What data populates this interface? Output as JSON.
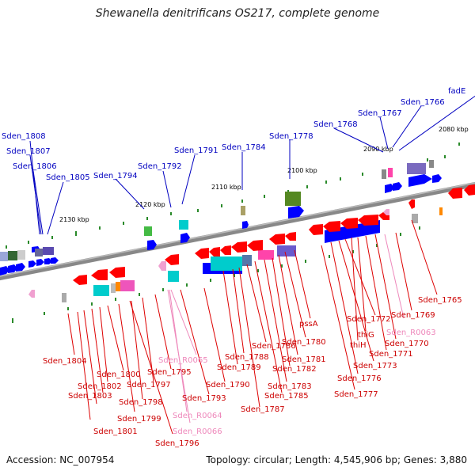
{
  "title": "Shewanella denitrificans OS217, complete genome",
  "accession": "Accession: NC_007954",
  "summary": "Topology: circular; Length: 4,545,906 bp; Genes: 3,880",
  "colors": {
    "forward_gene": "#0000ff",
    "reverse_gene": "#ff0000",
    "rna_gene": "#f0a0d0",
    "label_forward": "#0000c0",
    "label_reverse": "#cc0000",
    "label_rna": "#ee88bb",
    "backbone": "#888888",
    "tick": "#2a8a2a"
  },
  "ticks": [
    "2080 kbp",
    "2090 kbp",
    "2100 kbp",
    "2110 kbp",
    "2120 kbp",
    "2130 kbp"
  ],
  "forward_labels": [
    "Sden_1808",
    "Sden_1807",
    "Sden_1806",
    "Sden_1805",
    "Sden_1794",
    "Sden_1792",
    "Sden_1791",
    "Sden_1784",
    "Sden_1778",
    "Sden_1768",
    "Sden_1767",
    "Sden_1766",
    "fadE"
  ],
  "reverse_labels": [
    "Sden_1765",
    "Sden_1769",
    "Sden_R0063",
    "Sden_1770",
    "Sden_1771",
    "thiG",
    "thiH",
    "Sden_1772",
    "Sden_1773",
    "Sden_1776",
    "Sden_1777",
    "pssA",
    "Sden_1780",
    "Sden_1781",
    "Sden_1782",
    "Sden_1783",
    "Sden_1785",
    "Sden_1786",
    "Sden_1787",
    "Sden_1788",
    "Sden_1789",
    "Sden_1790",
    "Sden_R0065",
    "Sden_1793",
    "Sden_1795",
    "Sden_1797",
    "Sden_R0064",
    "Sden_R0066",
    "Sden_1796",
    "Sden_1798",
    "Sden_1799",
    "Sden_1800",
    "Sden_1801",
    "Sden_1802",
    "Sden_1803",
    "Sden_1804"
  ]
}
